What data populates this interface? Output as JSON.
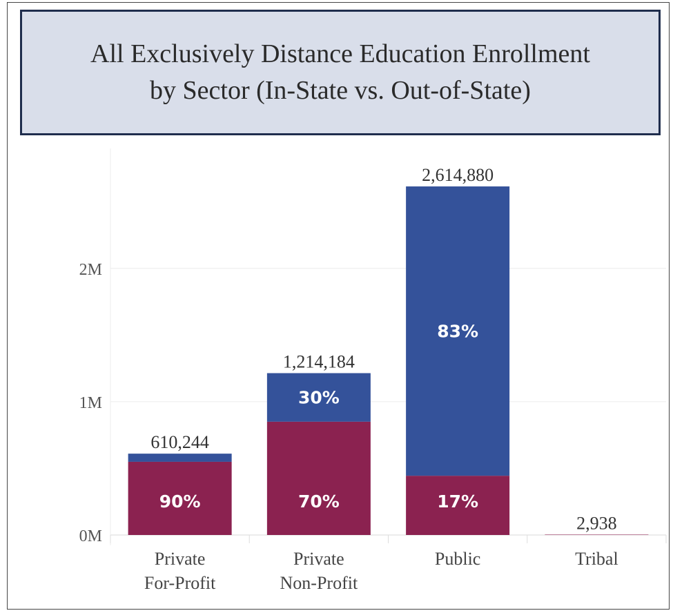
{
  "title": {
    "line1": "All Exclusively Distance Education Enrollment",
    "line2": "by Sector (In-State vs. Out-of-State)"
  },
  "colors": {
    "in_state": "#8b2250",
    "out_of_state": "#34529a"
  },
  "chart_data": {
    "type": "bar",
    "stacked": true,
    "title": "All Exclusively Distance Education Enrollment by Sector (In-State vs. Out-of-State)",
    "categories": [
      {
        "lines": [
          "Private",
          "For-Profit"
        ]
      },
      {
        "lines": [
          "Private",
          "Non-Profit"
        ]
      },
      {
        "lines": [
          "Public"
        ]
      },
      {
        "lines": [
          "Tribal"
        ]
      }
    ],
    "totals": [
      610244,
      1214184,
      2614880,
      2938
    ],
    "total_labels": [
      "610,244",
      "1,214,184",
      "2,614,880",
      "2,938"
    ],
    "series": [
      {
        "color": "#8b2250",
        "values": [
          549220,
          849929,
          444530,
          2938
        ],
        "labels": [
          "90%",
          "70%",
          "17%",
          ""
        ]
      },
      {
        "color": "#34529a",
        "values": [
          61024,
          364255,
          2170350,
          0
        ],
        "labels": [
          "",
          "30%",
          "83%",
          ""
        ]
      }
    ],
    "yticks": [
      {
        "value": 0,
        "label": "0M"
      },
      {
        "value": 1000000,
        "label": "1M"
      },
      {
        "value": 2000000,
        "label": "2M"
      }
    ],
    "ylim": [
      0,
      2900000
    ],
    "xlabel": "",
    "ylabel": "",
    "grid": true
  }
}
